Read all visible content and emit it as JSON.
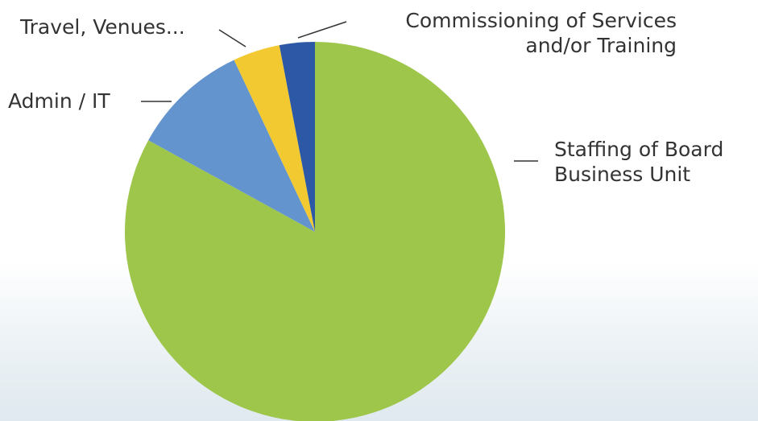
{
  "chart_data": {
    "type": "pie",
    "categories": [
      "Staffing of Board Business Unit",
      "Admin / IT",
      "Travel, Venues...",
      "Commissioning of Services and/or Training"
    ],
    "values": [
      83,
      10,
      4,
      3
    ],
    "colors": [
      "#9dc64b",
      "#6494cd",
      "#f3c932",
      "#2c58a5"
    ]
  }
}
